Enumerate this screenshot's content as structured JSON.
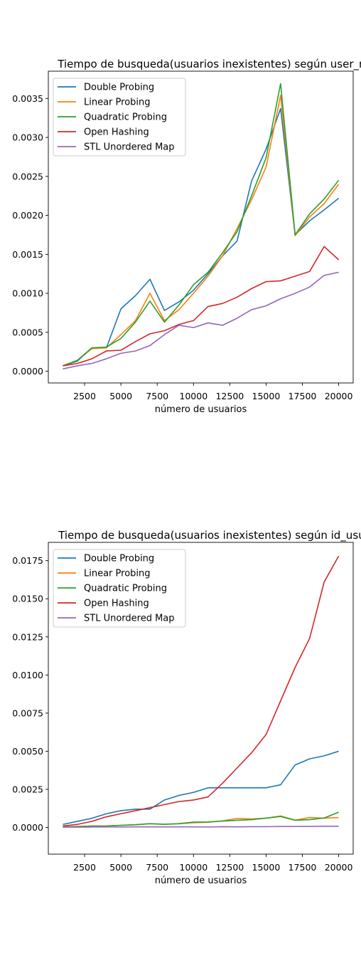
{
  "chart_data": [
    {
      "type": "line",
      "title": "Tiempo de busqueda(usuarios inexistentes) según user_na",
      "xlabel": "número de usuarios",
      "ylabel": "",
      "xlim": [
        0,
        21000
      ],
      "ylim": [
        -0.00015,
        0.00385
      ],
      "x_ticks": [
        2500,
        5000,
        7500,
        10000,
        12500,
        15000,
        17500,
        20000
      ],
      "x_tick_labels": [
        "2500",
        "5000",
        "7500",
        "10000",
        "12500",
        "15000",
        "17500",
        "20000"
      ],
      "y_ticks": [
        0,
        0.0005,
        0.001,
        0.0015,
        0.002,
        0.0025,
        0.003,
        0.0035
      ],
      "y_tick_labels": [
        "0.0000",
        "0.0005",
        "0.0010",
        "0.0015",
        "0.0020",
        "0.0025",
        "0.0030",
        "0.0035"
      ],
      "legend_position": "top-left",
      "grid": false,
      "x": [
        1000,
        2000,
        3000,
        4000,
        5000,
        6000,
        7000,
        8000,
        9000,
        10000,
        11000,
        12000,
        13000,
        14000,
        15000,
        16000,
        17000,
        18000,
        19000,
        20000
      ],
      "series": [
        {
          "name": "Double Probing",
          "color": "#1f77b4",
          "values": [
            7e-05,
            0.00013,
            0.0003,
            0.0003,
            0.0008,
            0.00097,
            0.00118,
            0.00078,
            0.00089,
            0.00104,
            0.00125,
            0.00148,
            0.00167,
            0.00244,
            0.00285,
            0.00337,
            0.00175,
            0.00193,
            0.00207,
            0.00222
          ]
        },
        {
          "name": "Linear Probing",
          "color": "#ff7f0e",
          "values": [
            7e-05,
            0.00014,
            0.00029,
            0.0003,
            0.00047,
            0.00065,
            0.001,
            0.00065,
            0.00079,
            0.001,
            0.00122,
            0.00148,
            0.00183,
            0.0022,
            0.00262,
            0.00354,
            0.00174,
            0.00198,
            0.00215,
            0.0024
          ]
        },
        {
          "name": "Quadratic Probing",
          "color": "#2ca02c",
          "values": [
            7e-05,
            0.00014,
            0.0003,
            0.00031,
            0.00042,
            0.00063,
            0.0009,
            0.00063,
            0.00085,
            0.00111,
            0.00127,
            0.00152,
            0.00179,
            0.00225,
            0.00274,
            0.00369,
            0.00175,
            0.00202,
            0.00221,
            0.00245
          ]
        },
        {
          "name": "Open Hashing",
          "color": "#d62728",
          "values": [
            7e-05,
            0.0001,
            0.00016,
            0.00026,
            0.00027,
            0.00038,
            0.00048,
            0.00052,
            0.0006,
            0.00065,
            0.00083,
            0.00087,
            0.00095,
            0.00106,
            0.00115,
            0.00116,
            0.00122,
            0.00128,
            0.0016,
            0.00143
          ]
        },
        {
          "name": "STL Unordered Map",
          "color": "#9467bd",
          "values": [
            3e-05,
            7e-05,
            0.0001,
            0.00016,
            0.00023,
            0.00026,
            0.00033,
            0.00047,
            0.00059,
            0.00056,
            0.00062,
            0.00059,
            0.00068,
            0.00079,
            0.00084,
            0.00093,
            0.001,
            0.00108,
            0.00123,
            0.00127
          ]
        }
      ]
    },
    {
      "type": "line",
      "title": "Tiempo de busqueda(usuarios inexistentes) según id_usua",
      "xlabel": "número de usuarios",
      "ylabel": "",
      "xlim": [
        0,
        21000
      ],
      "ylim": [
        -0.00175,
        0.0187
      ],
      "x_ticks": [
        2500,
        5000,
        7500,
        10000,
        12500,
        15000,
        17500,
        20000
      ],
      "x_tick_labels": [
        "2500",
        "5000",
        "7500",
        "10000",
        "12500",
        "15000",
        "17500",
        "20000"
      ],
      "y_ticks": [
        0,
        0.0025,
        0.005,
        0.0075,
        0.01,
        0.0125,
        0.015,
        0.0175
      ],
      "y_tick_labels": [
        "0.0000",
        "0.0025",
        "0.0050",
        "0.0075",
        "0.0100",
        "0.0125",
        "0.0150",
        "0.0175"
      ],
      "legend_position": "top-left",
      "grid": false,
      "x": [
        1000,
        2000,
        3000,
        4000,
        5000,
        6000,
        7000,
        8000,
        9000,
        10000,
        11000,
        12000,
        13000,
        14000,
        15000,
        16000,
        17000,
        18000,
        19000,
        20000
      ],
      "series": [
        {
          "name": "Double Probing",
          "color": "#1f77b4",
          "values": [
            0.0002,
            0.0004,
            0.0006,
            0.0009,
            0.0011,
            0.0012,
            0.0012,
            0.0018,
            0.0021,
            0.0023,
            0.0026,
            0.0026,
            0.0026,
            0.0026,
            0.0026,
            0.0028,
            0.0041,
            0.0045,
            0.0047,
            0.005
          ]
        },
        {
          "name": "Linear Probing",
          "color": "#ff7f0e",
          "values": [
            4e-05,
            6e-05,
            9e-05,
            0.0001,
            0.00014,
            0.00018,
            0.00024,
            0.00021,
            0.00024,
            0.00031,
            0.00034,
            0.00043,
            0.00059,
            0.00056,
            0.00061,
            0.00075,
            0.00048,
            0.00065,
            0.00061,
            0.00065
          ]
        },
        {
          "name": "Quadratic Probing",
          "color": "#2ca02c",
          "values": [
            4e-05,
            6e-05,
            9e-05,
            0.0001,
            0.00014,
            0.00018,
            0.00025,
            0.00021,
            0.00025,
            0.00035,
            0.00036,
            0.00042,
            0.00047,
            0.00051,
            0.00061,
            0.00072,
            0.00047,
            0.00051,
            0.00062,
            0.001
          ]
        },
        {
          "name": "Open Hashing",
          "color": "#d62728",
          "values": [
            0.0001,
            0.0002,
            0.0004,
            0.0007,
            0.0009,
            0.0011,
            0.0013,
            0.0015,
            0.0017,
            0.0018,
            0.002,
            0.0029,
            0.0039,
            0.0049,
            0.0061,
            0.0083,
            0.0105,
            0.0124,
            0.0161,
            0.0178
          ]
        },
        {
          "name": "STL Unordered Map",
          "color": "#9467bd",
          "values": [
            2e-05,
            2e-05,
            3e-05,
            3e-05,
            3e-05,
            4e-05,
            4e-05,
            4e-05,
            4e-05,
            4e-05,
            3e-05,
            5e-05,
            4e-05,
            5e-05,
            5e-05,
            6e-05,
            6e-05,
            7e-05,
            8e-05,
            8e-05
          ]
        }
      ]
    }
  ]
}
